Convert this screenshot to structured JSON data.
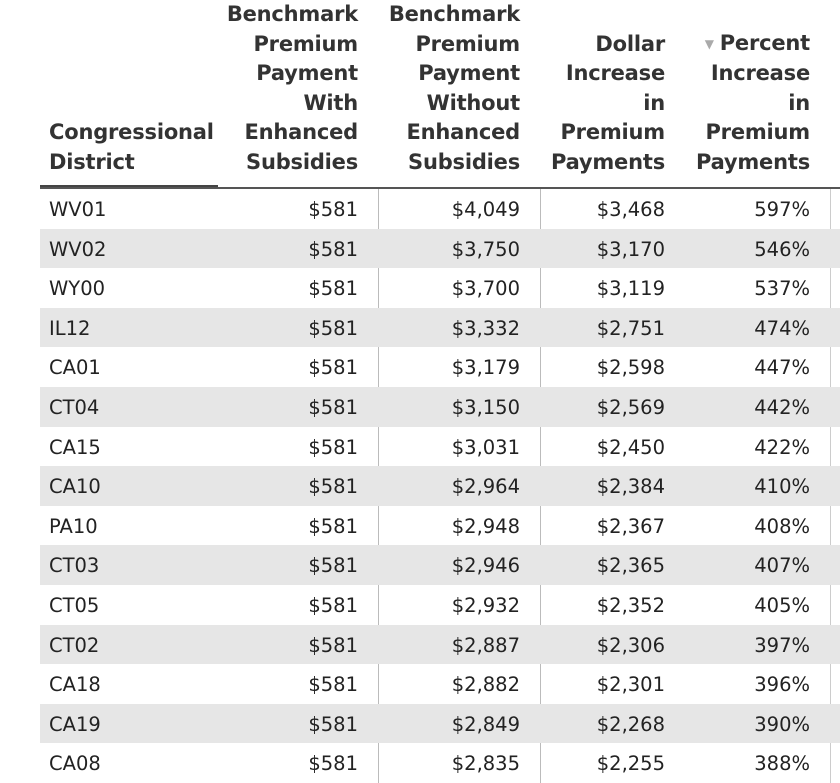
{
  "table": {
    "headers": {
      "district": [
        "Congressional",
        "District"
      ],
      "with_subsidies": [
        "Benchmark",
        "Premium",
        "Payment",
        "With",
        "Enhanced",
        "Subsidies"
      ],
      "without_subsidies": [
        "Benchmark",
        "Premium",
        "Payment",
        "Without",
        "Enhanced",
        "Subsidies"
      ],
      "dollar_increase": [
        "Dollar",
        "Increase",
        "in",
        "Premium",
        "Payments"
      ],
      "percent_increase": [
        "Percent",
        "Increase",
        "in",
        "Premium",
        "Payments"
      ]
    },
    "sort_indicator": "▼",
    "rows": [
      {
        "district": "WV01",
        "with": "$581",
        "without": "$4,049",
        "dollar": "$3,468",
        "percent": "597%"
      },
      {
        "district": "WV02",
        "with": "$581",
        "without": "$3,750",
        "dollar": "$3,170",
        "percent": "546%"
      },
      {
        "district": "WY00",
        "with": "$581",
        "without": "$3,700",
        "dollar": "$3,119",
        "percent": "537%"
      },
      {
        "district": "IL12",
        "with": "$581",
        "without": "$3,332",
        "dollar": "$2,751",
        "percent": "474%"
      },
      {
        "district": "CA01",
        "with": "$581",
        "without": "$3,179",
        "dollar": "$2,598",
        "percent": "447%"
      },
      {
        "district": "CT04",
        "with": "$581",
        "without": "$3,150",
        "dollar": "$2,569",
        "percent": "442%"
      },
      {
        "district": "CA15",
        "with": "$581",
        "without": "$3,031",
        "dollar": "$2,450",
        "percent": "422%"
      },
      {
        "district": "CA10",
        "with": "$581",
        "without": "$2,964",
        "dollar": "$2,384",
        "percent": "410%"
      },
      {
        "district": "PA10",
        "with": "$581",
        "without": "$2,948",
        "dollar": "$2,367",
        "percent": "408%"
      },
      {
        "district": "CT03",
        "with": "$581",
        "without": "$2,946",
        "dollar": "$2,365",
        "percent": "407%"
      },
      {
        "district": "CT05",
        "with": "$581",
        "without": "$2,932",
        "dollar": "$2,352",
        "percent": "405%"
      },
      {
        "district": "CT02",
        "with": "$581",
        "without": "$2,887",
        "dollar": "$2,306",
        "percent": "397%"
      },
      {
        "district": "CA18",
        "with": "$581",
        "without": "$2,882",
        "dollar": "$2,301",
        "percent": "396%"
      },
      {
        "district": "CA19",
        "with": "$581",
        "without": "$2,849",
        "dollar": "$2,268",
        "percent": "390%"
      },
      {
        "district": "CA08",
        "with": "$581",
        "without": "$2,835",
        "dollar": "$2,255",
        "percent": "388%"
      }
    ]
  }
}
